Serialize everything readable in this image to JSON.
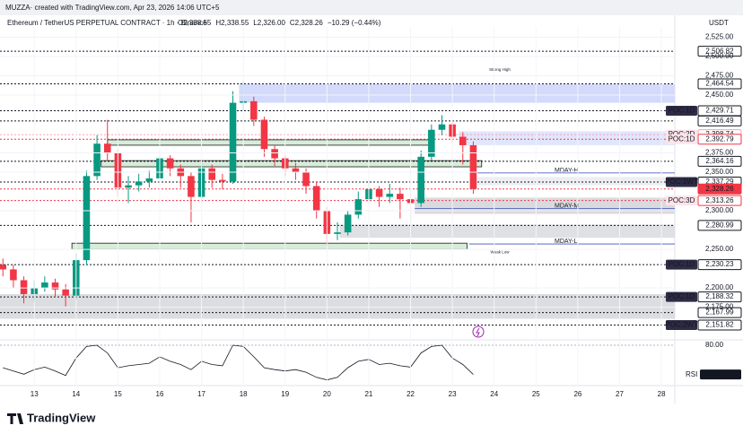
{
  "header": {
    "author": "MUZZA· created with TradingView.com, Apr 23, 2026 14:06 UTC+5",
    "currency": "USDT"
  },
  "footer": {
    "brand": "TradingView"
  },
  "chart_data": {
    "type": "candlestick",
    "title": "Ethereum / TetherUS PERPETUAL CONTRACT · 1h · Binance",
    "ohlc_text": {
      "open": "O2,338.55",
      "high": "H2,338.55",
      "low": "L2,326.00",
      "close": "C2,328.26",
      "change": "−10.29 (−0.44%)"
    },
    "x": [
      12.25,
      12.5,
      12.75,
      13,
      13.25,
      13.5,
      13.75,
      14,
      14.25,
      14.5,
      14.75,
      15,
      15.25,
      15.5,
      15.75,
      16,
      16.25,
      16.5,
      16.75,
      17,
      17.25,
      17.5,
      17.75,
      18,
      18.25,
      18.5,
      18.75,
      19,
      19.25,
      19.5,
      19.75,
      20,
      20.25,
      20.5,
      20.75,
      21,
      21.25,
      21.5,
      21.75,
      22,
      22.25,
      22.5,
      22.75,
      23,
      23.25,
      23.5
    ],
    "open": [
      2230,
      2224,
      2210,
      2192,
      2200,
      2207,
      2198,
      2190,
      2236,
      2345,
      2387,
      2375,
      2330,
      2333,
      2338,
      2342,
      2368,
      2355,
      2345,
      2318,
      2355,
      2340,
      2338,
      2440,
      2442,
      2418,
      2380,
      2368,
      2355,
      2350,
      2332,
      2300,
      2270,
      2272,
      2295,
      2315,
      2328,
      2318,
      2322,
      2315,
      2310,
      2370,
      2405,
      2412,
      2396,
      2385
    ],
    "high": [
      2238,
      2230,
      2215,
      2210,
      2215,
      2212,
      2205,
      2245,
      2352,
      2398,
      2418,
      2380,
      2345,
      2348,
      2352,
      2378,
      2372,
      2360,
      2350,
      2362,
      2360,
      2348,
      2455,
      2468,
      2448,
      2422,
      2385,
      2372,
      2362,
      2355,
      2338,
      2305,
      2285,
      2300,
      2325,
      2340,
      2332,
      2335,
      2330,
      2322,
      2378,
      2412,
      2424,
      2418,
      2402,
      2390
    ],
    "low": [
      2215,
      2200,
      2180,
      2182,
      2195,
      2188,
      2176,
      2185,
      2230,
      2340,
      2365,
      2318,
      2310,
      2325,
      2330,
      2338,
      2345,
      2330,
      2285,
      2312,
      2330,
      2328,
      2335,
      2430,
      2410,
      2370,
      2358,
      2345,
      2340,
      2322,
      2290,
      2255,
      2262,
      2268,
      2290,
      2310,
      2305,
      2310,
      2290,
      2285,
      2305,
      2365,
      2398,
      2388,
      2360,
      2322
    ],
    "close": [
      2224,
      2210,
      2192,
      2200,
      2207,
      2198,
      2190,
      2236,
      2345,
      2387,
      2375,
      2330,
      2333,
      2338,
      2342,
      2368,
      2355,
      2345,
      2318,
      2355,
      2340,
      2338,
      2440,
      2442,
      2418,
      2380,
      2368,
      2355,
      2350,
      2332,
      2300,
      2270,
      2272,
      2295,
      2315,
      2328,
      2318,
      2322,
      2315,
      2310,
      2370,
      2405,
      2412,
      2396,
      2385,
      2328.26
    ],
    "up_color": "#089981",
    "down_color": "#f23645",
    "xlim": [
      12.18,
      28.32
    ],
    "xticks": [
      13,
      14,
      15,
      16,
      17,
      18,
      19,
      20,
      21,
      22,
      23,
      24,
      25,
      26,
      27,
      28
    ],
    "ylim": [
      2135,
      2540
    ],
    "yticks": [
      {
        "value": 2525,
        "label": "2,525.00"
      },
      {
        "value": 2500,
        "label": "2,500.00"
      },
      {
        "value": 2475,
        "label": "2,475.00"
      },
      {
        "value": 2450,
        "label": "2,450.00"
      },
      {
        "value": 2375,
        "label": "2,375.00"
      },
      {
        "value": 2350,
        "label": "2,350.00"
      },
      {
        "value": 2300,
        "label": "2,300.00"
      },
      {
        "value": 2250,
        "label": "2,250.00"
      },
      {
        "value": 2200,
        "label": "2,200.00"
      },
      {
        "value": 2175,
        "label": "2,175.00"
      }
    ],
    "zones": [
      {
        "top": 2464,
        "bottom": 2440,
        "start": 17.9,
        "end": 28.32,
        "color": "#d3dafb"
      },
      {
        "top": 2403,
        "bottom": 2385,
        "start": 23.15,
        "end": 28.32,
        "color": "#e1e6fc"
      },
      {
        "top": 2344,
        "bottom": 2333,
        "start": 23.6,
        "end": 28.32,
        "color": "#eceef2"
      },
      {
        "top": 2317,
        "bottom": 2296,
        "start": 22.1,
        "end": 28.32,
        "color": "#d9dadd"
      },
      {
        "top": 2282,
        "bottom": 2265,
        "start": 20.3,
        "end": 28.32,
        "color": "#dfe0e3"
      },
      {
        "top": 2192,
        "bottom": 2160,
        "start": 12.18,
        "end": 28.32,
        "color": "#dcdde0"
      },
      {
        "top": 2392,
        "bottom": 2385,
        "start": 14.75,
        "end": 22.5,
        "color": "#d7ecd9"
      },
      {
        "top": 2365,
        "bottom": 2357,
        "start": 14.6,
        "end": 23.7,
        "color": "#d7ecd9"
      },
      {
        "top": 2258,
        "bottom": 2250,
        "start": 13.9,
        "end": 23.35,
        "color": "#d7ecd9"
      }
    ],
    "mday": [
      {
        "name": "MDAY-H",
        "value": 2349,
        "start": 23.6
      },
      {
        "name": "MDAY-M",
        "value": 2303,
        "start": 22.1
      },
      {
        "name": "MDAY-L",
        "value": 2257,
        "start": 23.4
      }
    ],
    "annotations": [
      {
        "text": "Strong High",
        "value": 2483
      },
      {
        "text": "Weak Low",
        "value": 2246
      }
    ],
    "levels": [
      {
        "value": 2506.82,
        "label": "2,506.82",
        "color": "#131722"
      },
      {
        "value": 2464.54,
        "label": "2,464.54",
        "color": "#131722"
      },
      {
        "value": 2429.71,
        "label": "2,429.71",
        "tag": "POC:1D",
        "color": "#131722"
      },
      {
        "value": 2416.49,
        "label": "2,416.49",
        "color": "#131722"
      },
      {
        "value": 2398.74,
        "label": "2,398.74",
        "tag": "POC:2D",
        "color": "#f7a1b8"
      },
      {
        "value": 2392.79,
        "label": "2,392.79",
        "tag": "POC:1D",
        "color": "#f23645"
      },
      {
        "value": 2364.16,
        "label": "2,364.16",
        "color": "#131722"
      },
      {
        "value": 2337.29,
        "label": "2,337.29",
        "tag": "POC:1WT",
        "color": "#131722"
      },
      {
        "value": 2328.26,
        "label": "2,328.26",
        "color": "#f23645"
      },
      {
        "value": 2313.26,
        "label": "2,313.26",
        "tag": "POC:3D",
        "color": "#f23645"
      },
      {
        "value": 2280.99,
        "label": "2,280.99",
        "color": "#131722"
      },
      {
        "value": 2230.23,
        "label": "2,230.23",
        "tag": "POC:1D",
        "color": "#131722"
      },
      {
        "value": 2188.32,
        "label": "2,188.32",
        "tag": "POC:1D",
        "color": "#131722"
      },
      {
        "value": 2167.99,
        "label": "2,167.99",
        "color": "#131722"
      },
      {
        "value": 2151.82,
        "label": "2,151.82",
        "tag": "POC:2WT",
        "color": "#131722"
      }
    ],
    "rsi": {
      "name": "RSI",
      "color": "#131722",
      "ylim": [
        20,
        87
      ],
      "yticks": [
        {
          "value": 80,
          "label": "80.00"
        }
      ],
      "values": [
        45,
        40,
        35,
        42,
        46,
        40,
        33,
        60,
        78,
        80,
        68,
        45,
        48,
        50,
        52,
        62,
        55,
        50,
        42,
        55,
        50,
        48,
        80,
        78,
        62,
        45,
        42,
        40,
        42,
        38,
        30,
        26,
        30,
        45,
        55,
        58,
        50,
        52,
        48,
        46,
        68,
        78,
        80,
        60,
        50,
        34.45
      ]
    }
  }
}
